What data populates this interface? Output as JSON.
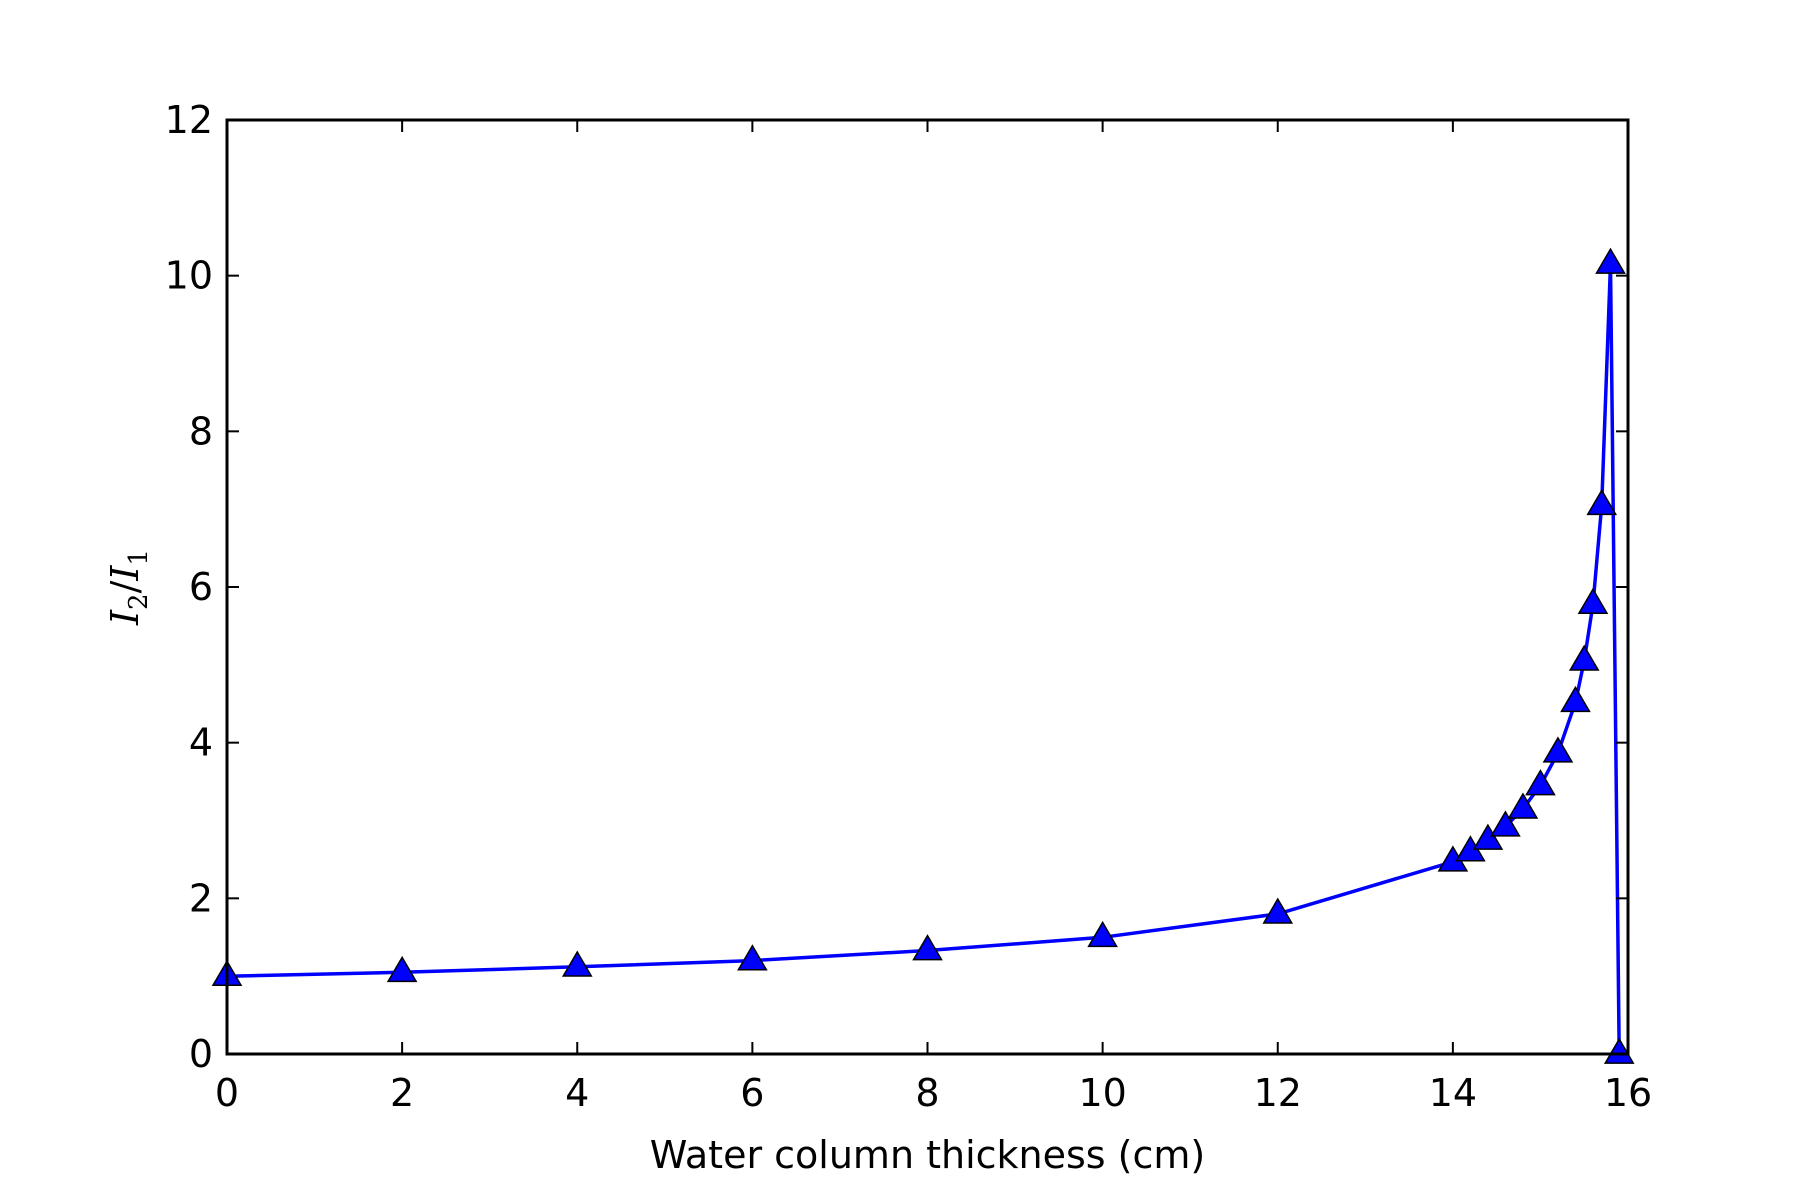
{
  "chart_data": {
    "type": "line",
    "xlabel": "Water column thickness (cm)",
    "ylabel": {
      "base1": "I",
      "sub1": "2",
      "sep": "/",
      "base2": "I",
      "sub2": "1"
    },
    "xlim": [
      0,
      16
    ],
    "ylim": [
      0,
      12
    ],
    "xticks": [
      0,
      2,
      4,
      6,
      8,
      10,
      12,
      14,
      16
    ],
    "yticks": [
      0,
      2,
      4,
      6,
      8,
      10,
      12
    ],
    "xtick_labels": [
      "0",
      "2",
      "4",
      "6",
      "8",
      "10",
      "12",
      "14",
      "16"
    ],
    "ytick_labels": [
      "0",
      "2",
      "4",
      "6",
      "8",
      "10",
      "12"
    ],
    "grid": false,
    "series": [
      {
        "color": "#0000ff",
        "marker": "triangle",
        "x": [
          0,
          2,
          4,
          6,
          8,
          10,
          12,
          14,
          14.2,
          14.4,
          14.6,
          14.8,
          15.0,
          15.2,
          15.4,
          15.5,
          15.6,
          15.7,
          15.8,
          15.9
        ],
        "y": [
          1.0,
          1.05,
          1.12,
          1.2,
          1.33,
          1.5,
          1.8,
          2.47,
          2.6,
          2.75,
          2.92,
          3.15,
          3.45,
          3.87,
          4.52,
          5.05,
          5.78,
          7.05,
          10.15,
          0.0
        ]
      }
    ]
  }
}
